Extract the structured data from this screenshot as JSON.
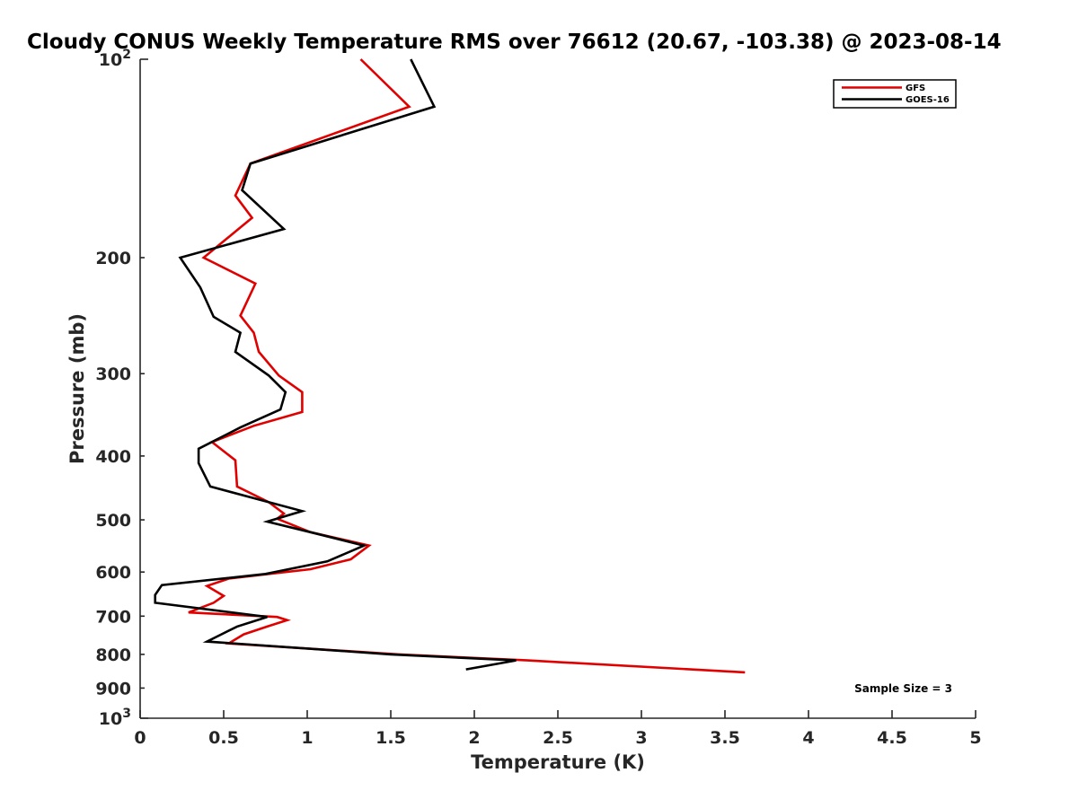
{
  "chart_data": {
    "type": "line",
    "title": "Cloudy CONUS Weekly Temperature RMS over 76612 (20.67, -103.38) @ 2023-08-14",
    "xlabel": "Temperature (K)",
    "ylabel": "Pressure (mb)",
    "xlim": [
      0,
      5
    ],
    "ylim": [
      100,
      1000
    ],
    "yscale": "log",
    "y_reversed": true,
    "x_ticks": [
      "0",
      "0.5",
      "1",
      "1.5",
      "2",
      "2.5",
      "3",
      "3.5",
      "4",
      "4.5",
      "5"
    ],
    "y_ticks": [
      {
        "value": 100,
        "base": "10",
        "exp": "2"
      },
      {
        "value": 200,
        "label": "200"
      },
      {
        "value": 300,
        "label": "300"
      },
      {
        "value": 400,
        "label": "400"
      },
      {
        "value": 500,
        "label": "500"
      },
      {
        "value": 600,
        "label": "600"
      },
      {
        "value": 700,
        "label": "700"
      },
      {
        "value": 800,
        "label": "800"
      },
      {
        "value": 900,
        "label": "900"
      },
      {
        "value": 1000,
        "base": "10",
        "exp": "3"
      }
    ],
    "legend_position": "top-right",
    "grid": false,
    "annotation": "Sample Size = 3",
    "series": [
      {
        "name": "GFS",
        "color": "#e00000",
        "points": [
          [
            1.32,
            100
          ],
          [
            1.61,
            118
          ],
          [
            0.66,
            144
          ],
          [
            0.57,
            161
          ],
          [
            0.67,
            174
          ],
          [
            0.38,
            200
          ],
          [
            0.69,
            219
          ],
          [
            0.6,
            245
          ],
          [
            0.68,
            260
          ],
          [
            0.71,
            278
          ],
          [
            0.83,
            302
          ],
          [
            0.97,
            320
          ],
          [
            0.97,
            343
          ],
          [
            0.68,
            360
          ],
          [
            0.43,
            381
          ],
          [
            0.57,
            406
          ],
          [
            0.58,
            445
          ],
          [
            0.77,
            470
          ],
          [
            0.86,
            489
          ],
          [
            0.82,
            498
          ],
          [
            1.02,
            522
          ],
          [
            1.37,
            547
          ],
          [
            1.26,
            574
          ],
          [
            1.02,
            594
          ],
          [
            0.53,
            614
          ],
          [
            0.4,
            630
          ],
          [
            0.5,
            652
          ],
          [
            0.44,
            668
          ],
          [
            0.29,
            691
          ],
          [
            0.82,
            702
          ],
          [
            0.88,
            710
          ],
          [
            0.76,
            726
          ],
          [
            0.62,
            746
          ],
          [
            0.53,
            770
          ],
          [
            1.55,
            800
          ],
          [
            2.32,
            817
          ],
          [
            3.62,
            852
          ]
        ]
      },
      {
        "name": "GOES-16",
        "color": "#000000",
        "points": [
          [
            1.62,
            100
          ],
          [
            1.76,
            118
          ],
          [
            0.66,
            144
          ],
          [
            0.61,
            158
          ],
          [
            0.86,
            181
          ],
          [
            0.24,
            200
          ],
          [
            0.36,
            222
          ],
          [
            0.44,
            246
          ],
          [
            0.6,
            260
          ],
          [
            0.57,
            278
          ],
          [
            0.77,
            302
          ],
          [
            0.87,
            320
          ],
          [
            0.84,
            340
          ],
          [
            0.6,
            362
          ],
          [
            0.35,
            390
          ],
          [
            0.35,
            410
          ],
          [
            0.42,
            445
          ],
          [
            0.97,
            485
          ],
          [
            0.76,
            503
          ],
          [
            1.02,
            522
          ],
          [
            1.34,
            547
          ],
          [
            1.12,
            578
          ],
          [
            0.75,
            604
          ],
          [
            0.13,
            628
          ],
          [
            0.09,
            650
          ],
          [
            0.09,
            668
          ],
          [
            0.76,
            702
          ],
          [
            0.58,
            726
          ],
          [
            0.4,
            765
          ],
          [
            1.5,
            800
          ],
          [
            2.25,
            817
          ],
          [
            1.95,
            843
          ]
        ]
      }
    ]
  }
}
